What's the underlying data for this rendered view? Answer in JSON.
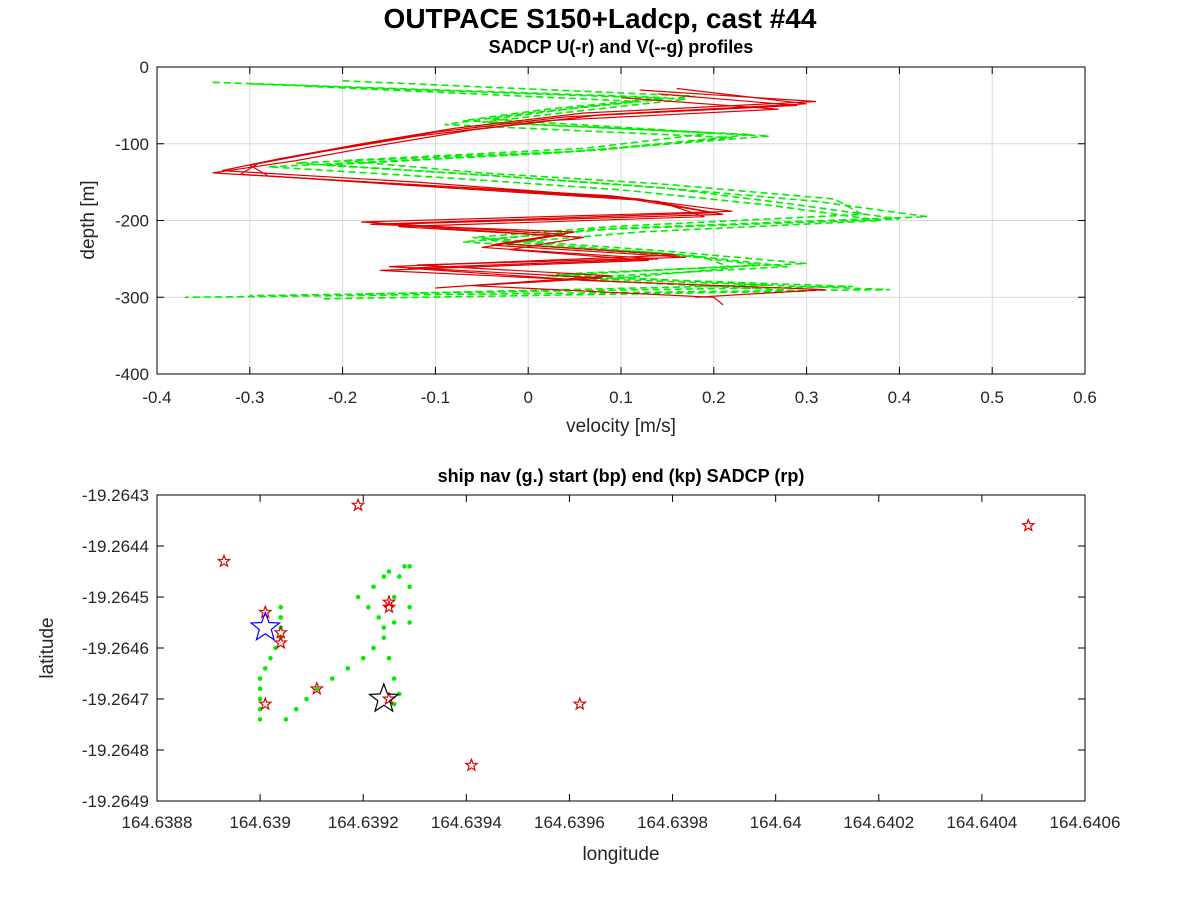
{
  "figure": {
    "title": "OUTPACE S150+Ladcp, cast #44"
  },
  "chart_data": [
    {
      "type": "line",
      "title": "SADCP U(-r) and V(--g) profiles",
      "xlabel": "velocity [m/s]",
      "ylabel": "depth [m]",
      "xlim": [
        -0.4,
        0.6
      ],
      "ylim": [
        -400,
        0
      ],
      "xticks": [
        "-0.4",
        "-0.3",
        "-0.2",
        "-0.1",
        "0",
        "0.1",
        "0.2",
        "0.3",
        "0.4",
        "0.5",
        "0.6"
      ],
      "yticks": [
        "0",
        "-100",
        "-200",
        "-300",
        "-400"
      ],
      "grid": true,
      "colors": {
        "u": "#e00000",
        "v": "#00ee00"
      },
      "series": [
        {
          "style": "solid",
          "profiles": [
            {
              "depth": [
                -30,
                -45,
                -60,
                -80,
                -100,
                -120,
                -135,
                -150,
                -170,
                -190,
                -205,
                -215,
                -230,
                -245,
                -260,
                -275,
                -285,
                -300,
                -310
              ],
              "vel": [
                0.12,
                0.31,
                0.06,
                -0.08,
                -0.18,
                -0.27,
                -0.33,
                -0.12,
                0.1,
                0.2,
                -0.17,
                0.05,
                -0.03,
                0.16,
                -0.15,
                0.08,
                -0.06,
                0.2,
                0.21
              ]
            },
            {
              "depth": [
                -35,
                -50,
                -65,
                -85,
                -105,
                -125,
                -140,
                -155,
                -172,
                -192,
                -205,
                -220,
                -235,
                -250,
                -262,
                -278,
                -290,
                -300
              ],
              "vel": [
                0.14,
                0.29,
                0.04,
                -0.1,
                -0.2,
                -0.29,
                -0.31,
                -0.1,
                0.12,
                0.21,
                -0.15,
                0.03,
                -0.05,
                0.14,
                -0.13,
                0.06,
                0.32,
                0.18
              ]
            },
            {
              "depth": [
                -40,
                -55,
                -70,
                -90,
                -110,
                -128,
                -142,
                -158,
                -175,
                -195,
                -208,
                -222,
                -238,
                -252,
                -265,
                -280
              ],
              "vel": [
                0.1,
                0.27,
                0.02,
                -0.12,
                -0.22,
                -0.3,
                -0.28,
                -0.08,
                0.14,
                0.19,
                -0.14,
                0.06,
                -0.02,
                0.13,
                -0.16,
                0.1
              ]
            },
            {
              "depth": [
                -28,
                -48,
                -62,
                -82,
                -102,
                -122,
                -138,
                -152,
                -168,
                -188,
                -202,
                -218,
                -232,
                -248,
                -258,
                -272,
                -288
              ],
              "vel": [
                0.16,
                0.3,
                0.08,
                -0.06,
                -0.16,
                -0.25,
                -0.34,
                -0.14,
                0.09,
                0.22,
                -0.18,
                0.04,
                -0.04,
                0.17,
                -0.12,
                0.09,
                -0.1
              ]
            }
          ]
        },
        {
          "style": "dashed",
          "profiles": [
            {
              "depth": [
                -20,
                -40,
                -55,
                -70,
                -90,
                -110,
                -125,
                -140,
                -155,
                -175,
                -195,
                -210,
                -225,
                -245,
                -260,
                -275,
                -290,
                -300
              ],
              "vel": [
                -0.34,
                0.15,
                0.02,
                -0.07,
                0.26,
                0.05,
                -0.25,
                -0.06,
                0.12,
                0.31,
                0.43,
                0.1,
                -0.05,
                0.17,
                0.28,
                0.05,
                0.39,
                -0.37
              ]
            },
            {
              "depth": [
                -22,
                -42,
                -58,
                -72,
                -88,
                -108,
                -128,
                -142,
                -158,
                -178,
                -198,
                -212,
                -228,
                -242,
                -258,
                -272,
                -286,
                -298
              ],
              "vel": [
                -0.3,
                0.17,
                0.05,
                -0.05,
                0.24,
                0.08,
                -0.22,
                -0.03,
                0.15,
                0.28,
                0.4,
                0.07,
                -0.07,
                0.14,
                0.25,
                0.02,
                0.35,
                -0.3
              ]
            },
            {
              "depth": [
                -25,
                -45,
                -60,
                -75,
                -92,
                -112,
                -130,
                -145,
                -160,
                -180,
                -200,
                -215,
                -230,
                -248,
                -262,
                -278,
                -292,
                -302
              ],
              "vel": [
                -0.24,
                0.12,
                0.0,
                -0.09,
                0.22,
                0.03,
                -0.28,
                -0.08,
                0.1,
                0.26,
                0.38,
                0.12,
                -0.03,
                0.19,
                0.22,
                0.07,
                0.3,
                -0.22
              ]
            },
            {
              "depth": [
                -18,
                -38,
                -52,
                -68,
                -86,
                -106,
                -122,
                -138,
                -152,
                -172,
                -192,
                -208,
                -222,
                -240,
                -256,
                -270,
                -284,
                -296
              ],
              "vel": [
                -0.2,
                0.18,
                0.06,
                -0.04,
                0.2,
                0.06,
                -0.2,
                -0.05,
                0.14,
                0.33,
                0.36,
                0.09,
                -0.06,
                0.15,
                0.3,
                0.03,
                0.26,
                -0.18
              ]
            }
          ]
        }
      ]
    },
    {
      "type": "scatter",
      "title": "ship nav (g.) start (bp) end (kp) SADCP (rp)",
      "xlabel": "longitude",
      "ylabel": "latitude",
      "xlim": [
        164.6388,
        164.6406
      ],
      "ylim": [
        -19.2649,
        -19.2643
      ],
      "xticks": [
        "164.6388",
        "164.639",
        "164.6392",
        "164.6394",
        "164.6396",
        "164.6398",
        "164.64",
        "164.6402",
        "164.6404",
        "164.6406"
      ],
      "yticks": [
        "-19.2643",
        "-19.2644",
        "-19.2645",
        "-19.2646",
        "-19.2647",
        "-19.2648",
        "-19.2649"
      ],
      "colors": {
        "nav": "#00ee00",
        "start": "#0000ff",
        "end": "#000000",
        "sadcp": "#e00000"
      },
      "ship_nav": [
        [
          164.63904,
          -19.26452
        ],
        [
          164.63904,
          -19.26454
        ],
        [
          164.63904,
          -19.26456
        ],
        [
          164.63904,
          -19.26458
        ],
        [
          164.63903,
          -19.2646
        ],
        [
          164.63902,
          -19.26462
        ],
        [
          164.63901,
          -19.26464
        ],
        [
          164.639,
          -19.26466
        ],
        [
          164.639,
          -19.26468
        ],
        [
          164.639,
          -19.2647
        ],
        [
          164.639,
          -19.26472
        ],
        [
          164.639,
          -19.26474
        ],
        [
          164.63905,
          -19.26474
        ],
        [
          164.63907,
          -19.26472
        ],
        [
          164.63909,
          -19.2647
        ],
        [
          164.63911,
          -19.26468
        ],
        [
          164.63914,
          -19.26466
        ],
        [
          164.63917,
          -19.26464
        ],
        [
          164.6392,
          -19.26462
        ],
        [
          164.63922,
          -19.2646
        ],
        [
          164.63924,
          -19.26458
        ],
        [
          164.63924,
          -19.26456
        ],
        [
          164.63923,
          -19.26454
        ],
        [
          164.63921,
          -19.26452
        ],
        [
          164.63919,
          -19.2645
        ],
        [
          164.63922,
          -19.26448
        ],
        [
          164.63924,
          -19.26446
        ],
        [
          164.63925,
          -19.26445
        ],
        [
          164.63926,
          -19.26455
        ],
        [
          164.63926,
          -19.2645
        ],
        [
          164.63927,
          -19.26446
        ],
        [
          164.63928,
          -19.26444
        ],
        [
          164.63929,
          -19.26444
        ],
        [
          164.63929,
          -19.26448
        ],
        [
          164.63929,
          -19.26452
        ],
        [
          164.63929,
          -19.26455
        ],
        [
          164.63925,
          -19.26462
        ],
        [
          164.63926,
          -19.26466
        ],
        [
          164.63927,
          -19.26469
        ],
        [
          164.63926,
          -19.26471
        ]
      ],
      "start": [
        164.63901,
        -19.26456
      ],
      "end": [
        164.63924,
        -19.2647
      ],
      "sadcp": [
        [
          164.63893,
          -19.26443
        ],
        [
          164.63919,
          -19.26432
        ],
        [
          164.63901,
          -19.26453
        ],
        [
          164.63904,
          -19.26457
        ],
        [
          164.63904,
          -19.26459
        ],
        [
          164.63925,
          -19.26451
        ],
        [
          164.63925,
          -19.26452
        ],
        [
          164.63911,
          -19.26468
        ],
        [
          164.63925,
          -19.2647
        ],
        [
          164.63901,
          -19.26471
        ],
        [
          164.63962,
          -19.26471
        ],
        [
          164.63941,
          -19.26483
        ],
        [
          164.64049,
          -19.26436
        ]
      ]
    }
  ]
}
